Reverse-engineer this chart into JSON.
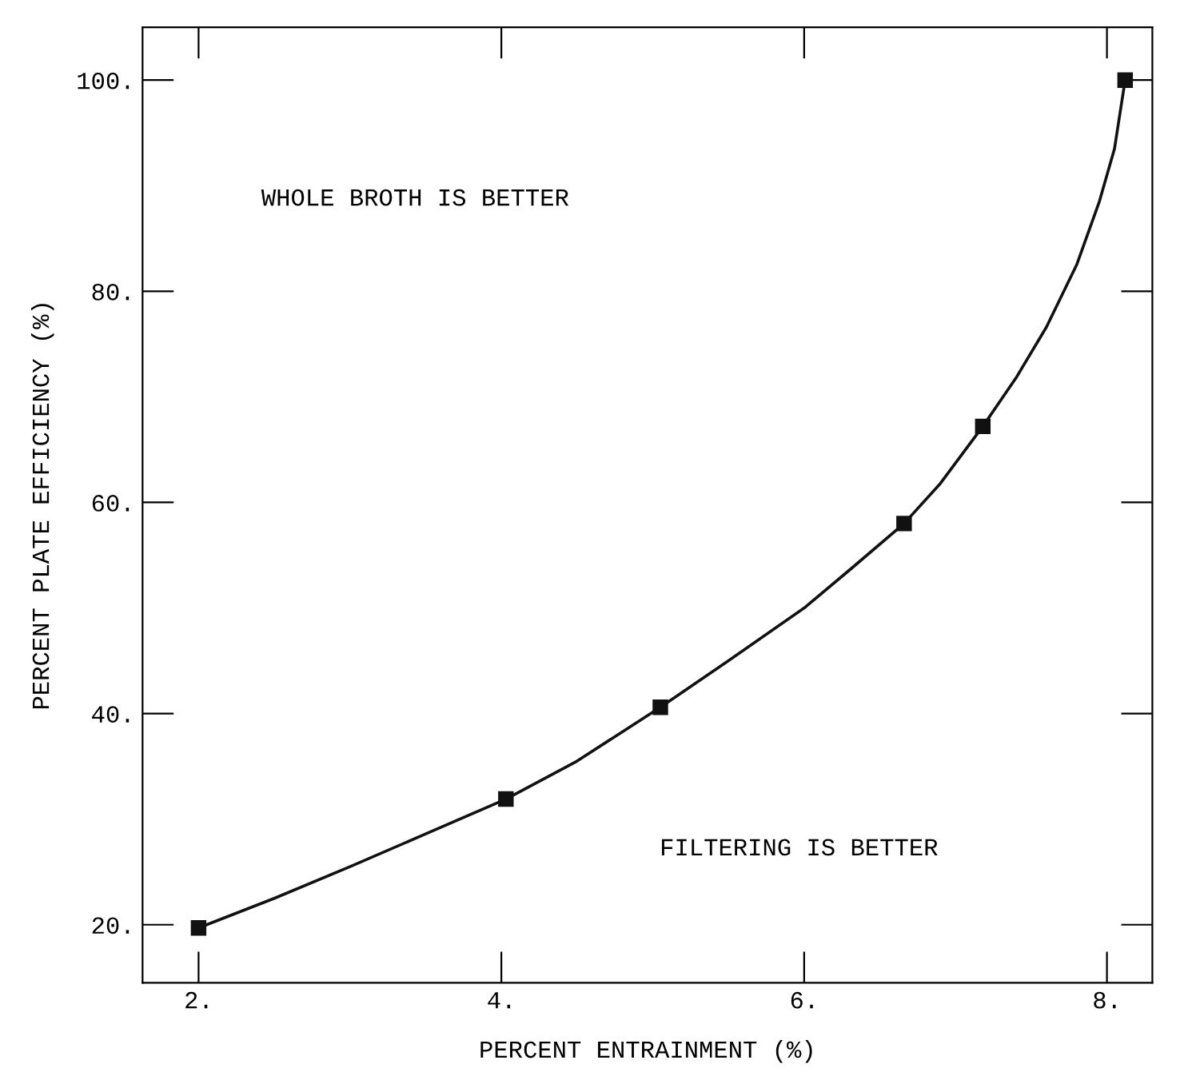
{
  "chart_data": {
    "type": "scatter",
    "xlabel": "PERCENT ENTRAINMENT (%)",
    "ylabel": "PERCENT PLATE EFFICIENCY (%)",
    "annotations": [
      "WHOLE BROTH IS BETTER",
      "FILTERING IS BETTER"
    ],
    "x": [
      2.0,
      4.03,
      5.05,
      6.66,
      7.18,
      8.12
    ],
    "series": [
      {
        "marker": "square",
        "color": "#111111",
        "values": [
          19.7,
          31.9,
          40.6,
          58.0,
          67.2,
          100
        ]
      },
      {
        "type": "line",
        "marker": "none",
        "color": "#111111",
        "x": [
          2.0,
          2.5,
          3.0,
          3.5,
          4.03,
          4.5,
          5.05,
          5.5,
          6.0,
          6.3,
          6.66,
          6.9,
          7.18,
          7.4,
          7.6,
          7.8,
          7.95,
          8.05,
          8.12
        ],
        "values": [
          19.7,
          22.5,
          25.5,
          28.6,
          31.9,
          35.5,
          40.6,
          45.0,
          50.0,
          53.6,
          58.0,
          61.8,
          67.2,
          71.8,
          76.6,
          82.5,
          88.5,
          93.5,
          100
        ]
      }
    ],
    "line_style": "solid",
    "grid": false,
    "legend": false,
    "xlim": [
      1.63,
      8.3
    ],
    "ylim": [
      14.5,
      105
    ],
    "xticks": [
      {
        "value": 2,
        "label": "2."
      },
      {
        "value": 4,
        "label": "4."
      },
      {
        "value": 6,
        "label": "6."
      },
      {
        "value": 8,
        "label": "8."
      }
    ],
    "yticks": [
      {
        "value": 20,
        "label": "20."
      },
      {
        "value": 40,
        "label": "40."
      },
      {
        "value": 60,
        "label": "60."
      },
      {
        "value": 80,
        "label": "80."
      },
      {
        "value": 100,
        "label": "100."
      }
    ]
  }
}
